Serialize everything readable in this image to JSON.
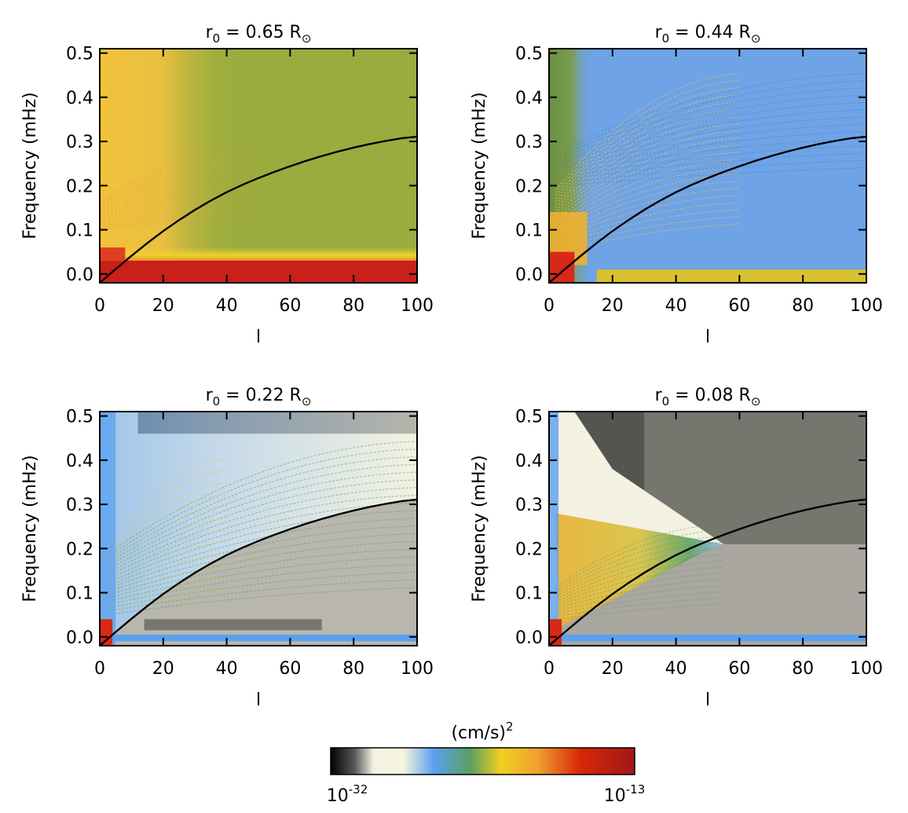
{
  "chart_data": {
    "type": "heatmap",
    "panels": [
      {
        "title_main": "r",
        "title_sub": "0",
        "title_rest": " = 0.65 R",
        "title_symbol": "⊙",
        "xlabel": "l",
        "ylabel": "Frequency (mHz)",
        "xlim": [
          0,
          100
        ],
        "ylim": [
          -0.02,
          0.51
        ],
        "xticks": [
          0,
          20,
          40,
          60,
          80,
          100
        ],
        "yticks": [
          0.0,
          0.1,
          0.2,
          0.3,
          0.4,
          0.5
        ],
        "xtick_labels": [
          "0",
          "20",
          "40",
          "60",
          "80",
          "100"
        ],
        "ytick_labels": [
          "0.0",
          "0.1",
          "0.2",
          "0.3",
          "0.4",
          "0.5"
        ],
        "background": "#9aac3e",
        "style": "p1"
      },
      {
        "title_main": "r",
        "title_sub": "0",
        "title_rest": " = 0.44 R",
        "title_symbol": "⊙",
        "xlabel": "l",
        "ylabel": "Frequency (mHz)",
        "xlim": [
          0,
          100
        ],
        "ylim": [
          -0.02,
          0.51
        ],
        "xticks": [
          0,
          20,
          40,
          60,
          80,
          100
        ],
        "yticks": [
          0.0,
          0.1,
          0.2,
          0.3,
          0.4,
          0.5
        ],
        "xtick_labels": [
          "0",
          "20",
          "40",
          "60",
          "80",
          "100"
        ],
        "ytick_labels": [
          "0.0",
          "0.1",
          "0.2",
          "0.3",
          "0.4",
          "0.5"
        ],
        "background": "#6ea3e8",
        "style": "p2"
      },
      {
        "title_main": "r",
        "title_sub": "0",
        "title_rest": " = 0.22 R",
        "title_symbol": "⊙",
        "xlabel": "l",
        "ylabel": "Frequency (mHz)",
        "xlim": [
          0,
          100
        ],
        "ylim": [
          -0.02,
          0.51
        ],
        "xticks": [
          0,
          20,
          40,
          60,
          80,
          100
        ],
        "yticks": [
          0.0,
          0.1,
          0.2,
          0.3,
          0.4,
          0.5
        ],
        "xtick_labels": [
          "0",
          "20",
          "40",
          "60",
          "80",
          "100"
        ],
        "ytick_labels": [
          "0.0",
          "0.1",
          "0.2",
          "0.3",
          "0.4",
          "0.5"
        ],
        "background": "#b8b6ad",
        "style": "p3"
      },
      {
        "title_main": "r",
        "title_sub": "0",
        "title_rest": " = 0.08 R",
        "title_symbol": "⊙",
        "xlabel": "l",
        "ylabel": "Frequency (mHz)",
        "xlim": [
          0,
          100
        ],
        "ylim": [
          -0.02,
          0.51
        ],
        "xticks": [
          0,
          20,
          40,
          60,
          80,
          100
        ],
        "yticks": [
          0.0,
          0.1,
          0.2,
          0.3,
          0.4,
          0.5
        ],
        "xtick_labels": [
          "0",
          "20",
          "40",
          "60",
          "80",
          "100"
        ],
        "ytick_labels": [
          "0.0",
          "0.1",
          "0.2",
          "0.3",
          "0.4",
          "0.5"
        ],
        "background": "#a9a79f",
        "style": "p4"
      }
    ],
    "curve": {
      "name": "dispersion curve",
      "color": "#000000",
      "l": [
        0,
        5,
        10,
        15,
        20,
        25,
        30,
        35,
        40,
        45,
        50,
        55,
        60,
        65,
        70,
        75,
        80,
        85,
        90,
        95,
        100
      ],
      "freq_mHz": [
        -0.02,
        0.011,
        0.041,
        0.07,
        0.097,
        0.122,
        0.145,
        0.166,
        0.185,
        0.202,
        0.217,
        0.231,
        0.244,
        0.256,
        0.267,
        0.277,
        0.286,
        0.294,
        0.301,
        0.307,
        0.311
      ]
    },
    "colorbar": {
      "title": "(cm/s)",
      "title_sup": "2",
      "min_base": "10",
      "min_exp": "-32",
      "max_base": "10",
      "max_exp": "-13",
      "colors": [
        "#000000",
        "#5a5a5a",
        "#f3f1e2",
        "#f6f4dd",
        "#5aa0f0",
        "#58a058",
        "#f0d020",
        "#f0a030",
        "#d82808",
        "#a01818"
      ]
    }
  }
}
